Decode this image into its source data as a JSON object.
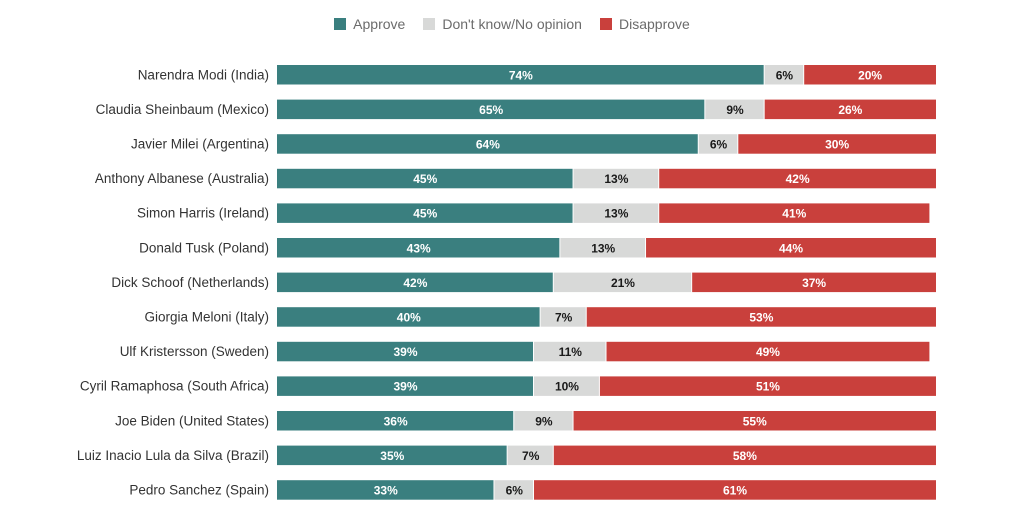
{
  "legend": [
    {
      "key": "approve",
      "label": "Approve",
      "color": "#3a7f7f"
    },
    {
      "key": "dont_know",
      "label": "Don't know/No opinion",
      "color": "#d8d9d8"
    },
    {
      "key": "disapprove",
      "label": "Disapprove",
      "color": "#c9403c"
    }
  ],
  "chart_data": {
    "type": "bar",
    "orientation": "horizontal",
    "stacked": true,
    "title": "",
    "xlabel": "",
    "ylabel": "",
    "xlim": [
      0,
      100
    ],
    "unit": "%",
    "legend_position": "top-center",
    "grid": false,
    "categories": [
      "Narendra Modi (India)",
      "Claudia Sheinbaum (Mexico)",
      "Javier Milei (Argentina)",
      "Anthony Albanese (Australia)",
      "Simon Harris (Ireland)",
      "Donald Tusk (Poland)",
      "Dick Schoof (Netherlands)",
      "Giorgia Meloni (Italy)",
      "Ulf Kristersson (Sweden)",
      "Cyril Ramaphosa (South Africa)",
      "Joe Biden (United States)",
      "Luiz Inacio Lula da Silva (Brazil)",
      "Pedro Sanchez (Spain)"
    ],
    "series": [
      {
        "name": "Approve",
        "color": "#3a7f7f",
        "label_color": "#ffffff",
        "values": [
          74,
          65,
          64,
          45,
          45,
          43,
          42,
          40,
          39,
          39,
          36,
          35,
          33
        ]
      },
      {
        "name": "Don't know/No opinion",
        "color": "#d8d9d8",
        "label_color": "#1a1a1a",
        "values": [
          6,
          9,
          6,
          13,
          13,
          13,
          21,
          7,
          11,
          10,
          9,
          7,
          6
        ]
      },
      {
        "name": "Disapprove",
        "color": "#c9403c",
        "label_color": "#ffffff",
        "values": [
          20,
          26,
          30,
          42,
          41,
          44,
          37,
          53,
          49,
          51,
          55,
          58,
          61
        ]
      }
    ]
  }
}
